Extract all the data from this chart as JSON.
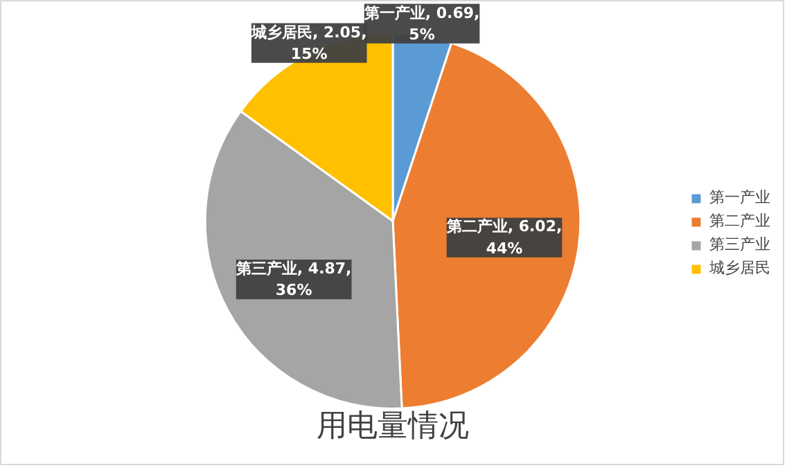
{
  "chart_data": {
    "type": "pie",
    "title": "用电量情况",
    "categories": [
      "第一产业",
      "第二产业",
      "第三产业",
      "城乡居民"
    ],
    "values": [
      0.69,
      6.02,
      4.87,
      2.05
    ],
    "colors": [
      "#5b9bd5",
      "#ed7d31",
      "#a5a5a5",
      "#ffc000"
    ],
    "value_labels": [
      "第一产业, 0.69,\n5%",
      "第二产业, 6.02,\n44%",
      "第三产业, 4.87,\n36%",
      "城乡居民, 2.05,\n15%"
    ],
    "legend": "right"
  }
}
